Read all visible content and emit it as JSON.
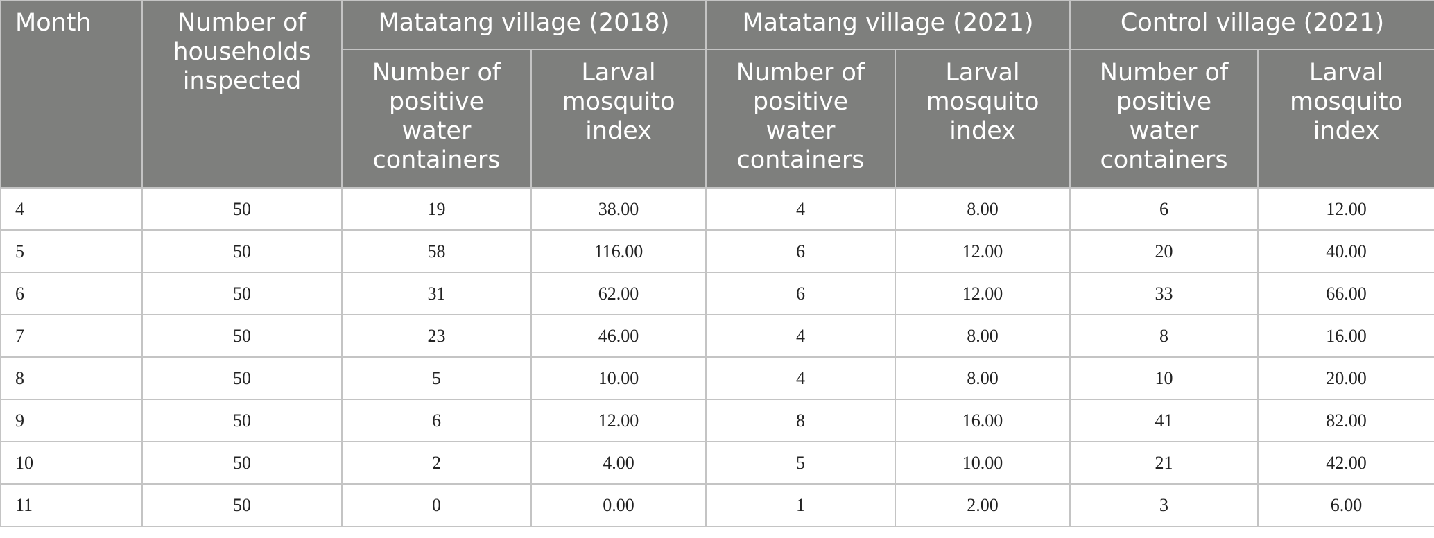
{
  "table": {
    "header": {
      "month": "Month",
      "households": "Number of households inspected",
      "groups": [
        "Matatang village (2018)",
        "Matatang village (2021)",
        "Control village (2021)"
      ],
      "sub_positive": "Number of positive water containers",
      "sub_index": "Larval mosquito index"
    },
    "rows": [
      [
        "4",
        "50",
        "19",
        "38.00",
        "4",
        "8.00",
        "6",
        "12.00"
      ],
      [
        "5",
        "50",
        "58",
        "116.00",
        "6",
        "12.00",
        "20",
        "40.00"
      ],
      [
        "6",
        "50",
        "31",
        "62.00",
        "6",
        "12.00",
        "33",
        "66.00"
      ],
      [
        "7",
        "50",
        "23",
        "46.00",
        "4",
        "8.00",
        "8",
        "16.00"
      ],
      [
        "8",
        "50",
        "5",
        "10.00",
        "4",
        "8.00",
        "10",
        "20.00"
      ],
      [
        "9",
        "50",
        "6",
        "12.00",
        "8",
        "16.00",
        "41",
        "82.00"
      ],
      [
        "10",
        "50",
        "2",
        "4.00",
        "5",
        "10.00",
        "21",
        "42.00"
      ],
      [
        "11",
        "50",
        "0",
        "0.00",
        "1",
        "2.00",
        "3",
        "6.00"
      ]
    ]
  },
  "colors": {
    "header_bg": "#7e7f7d",
    "header_text": "#ffffff",
    "grid_line": "#c4c4c4"
  }
}
